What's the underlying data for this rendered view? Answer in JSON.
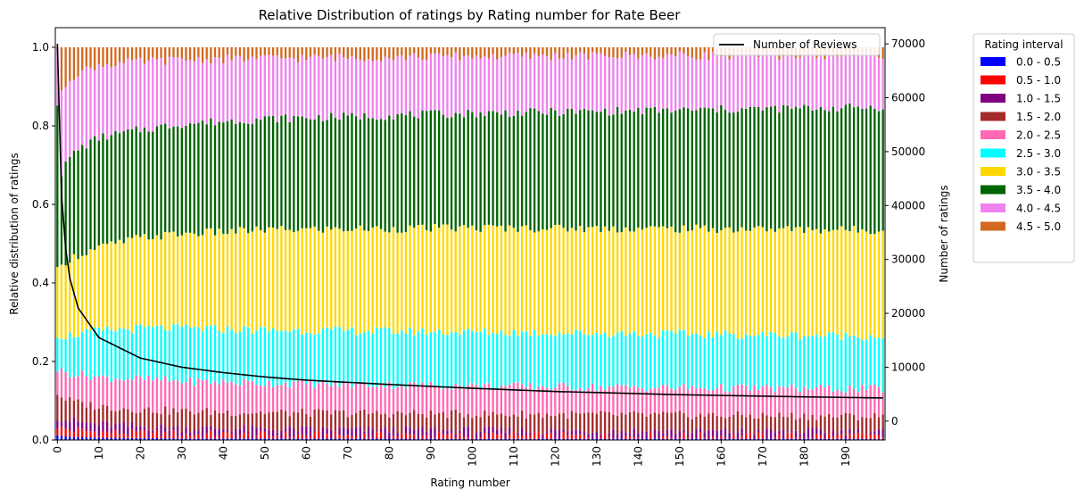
{
  "chart_data": {
    "type": "bar",
    "stacked": true,
    "normalized": true,
    "title": "Relative Distribution of ratings by Rating number for Rate Beer",
    "xlabel": "Rating number",
    "ylabel": "Relative distribution of ratings",
    "y2label": "Number of ratings",
    "x_range": [
      0,
      199
    ],
    "x_ticks": [
      "0",
      "10",
      "20",
      "30",
      "40",
      "50",
      "60",
      "70",
      "80",
      "90",
      "100",
      "110",
      "120",
      "130",
      "140",
      "150",
      "160",
      "170",
      "180",
      "190"
    ],
    "ylim": [
      0,
      1.05
    ],
    "y_ticks": [
      "0.0",
      "0.2",
      "0.4",
      "0.6",
      "0.8",
      "1.0"
    ],
    "y2lim": [
      -3500,
      73000
    ],
    "y2_ticks": [
      "0",
      "10000",
      "20000",
      "30000",
      "40000",
      "50000",
      "60000",
      "70000"
    ],
    "legend_title": "Rating interval",
    "legend_position": "outside-right",
    "categories": [
      "0.0 - 0.5",
      "0.5 - 1.0",
      "1.0 - 1.5",
      "1.5 - 2.0",
      "2.0 - 2.5",
      "2.5 - 3.0",
      "3.0 - 3.5",
      "3.5 - 4.0",
      "4.0 - 4.5",
      "4.5 - 5.0"
    ],
    "colors": [
      "#0000ff",
      "#ff0000",
      "#800080",
      "#a52a2a",
      "#ff69b4",
      "#00ffff",
      "#ffd700",
      "#006400",
      "#ee82ee",
      "#d2691e"
    ],
    "profile_cumulative_at_x": {
      "x": [
        0,
        1,
        2,
        3,
        5,
        10,
        20,
        30,
        50,
        100,
        150,
        199
      ],
      "upper_bounds": [
        [
          0.012,
          0.035,
          0.06,
          0.12,
          0.18,
          0.27,
          0.43,
          0.86,
          1.0,
          1.0
        ],
        [
          0.01,
          0.03,
          0.055,
          0.11,
          0.175,
          0.265,
          0.44,
          0.68,
          0.88,
          1.0
        ],
        [
          0.009,
          0.028,
          0.052,
          0.105,
          0.172,
          0.265,
          0.455,
          0.7,
          0.905,
          1.0
        ],
        [
          0.008,
          0.026,
          0.05,
          0.1,
          0.17,
          0.267,
          0.462,
          0.72,
          0.92,
          1.0
        ],
        [
          0.007,
          0.024,
          0.046,
          0.095,
          0.168,
          0.27,
          0.47,
          0.74,
          0.935,
          1.0
        ],
        [
          0.006,
          0.02,
          0.04,
          0.085,
          0.16,
          0.278,
          0.49,
          0.77,
          0.955,
          1.0
        ],
        [
          0.005,
          0.016,
          0.034,
          0.078,
          0.155,
          0.285,
          0.515,
          0.79,
          0.963,
          1.0
        ],
        [
          0.004,
          0.014,
          0.03,
          0.073,
          0.15,
          0.285,
          0.525,
          0.805,
          0.968,
          1.0
        ],
        [
          0.004,
          0.012,
          0.027,
          0.07,
          0.145,
          0.28,
          0.535,
          0.818,
          0.972,
          1.0
        ],
        [
          0.003,
          0.01,
          0.024,
          0.066,
          0.138,
          0.275,
          0.54,
          0.832,
          0.977,
          1.0
        ],
        [
          0.003,
          0.009,
          0.022,
          0.063,
          0.133,
          0.27,
          0.538,
          0.84,
          0.979,
          1.0
        ],
        [
          0.003,
          0.009,
          0.021,
          0.06,
          0.13,
          0.265,
          0.535,
          0.848,
          0.98,
          1.0
        ]
      ]
    },
    "series": [
      {
        "name": "Number of Reviews",
        "type": "line",
        "axis": "right",
        "color": "#000000",
        "x": [
          0,
          1,
          2,
          3,
          5,
          10,
          20,
          30,
          40,
          50,
          60,
          80,
          100,
          120,
          150,
          180,
          199
        ],
        "values": [
          70000,
          42000,
          32000,
          26500,
          21000,
          15500,
          11700,
          10000,
          9000,
          8200,
          7600,
          6800,
          6100,
          5500,
          4900,
          4500,
          4300
        ]
      }
    ]
  }
}
